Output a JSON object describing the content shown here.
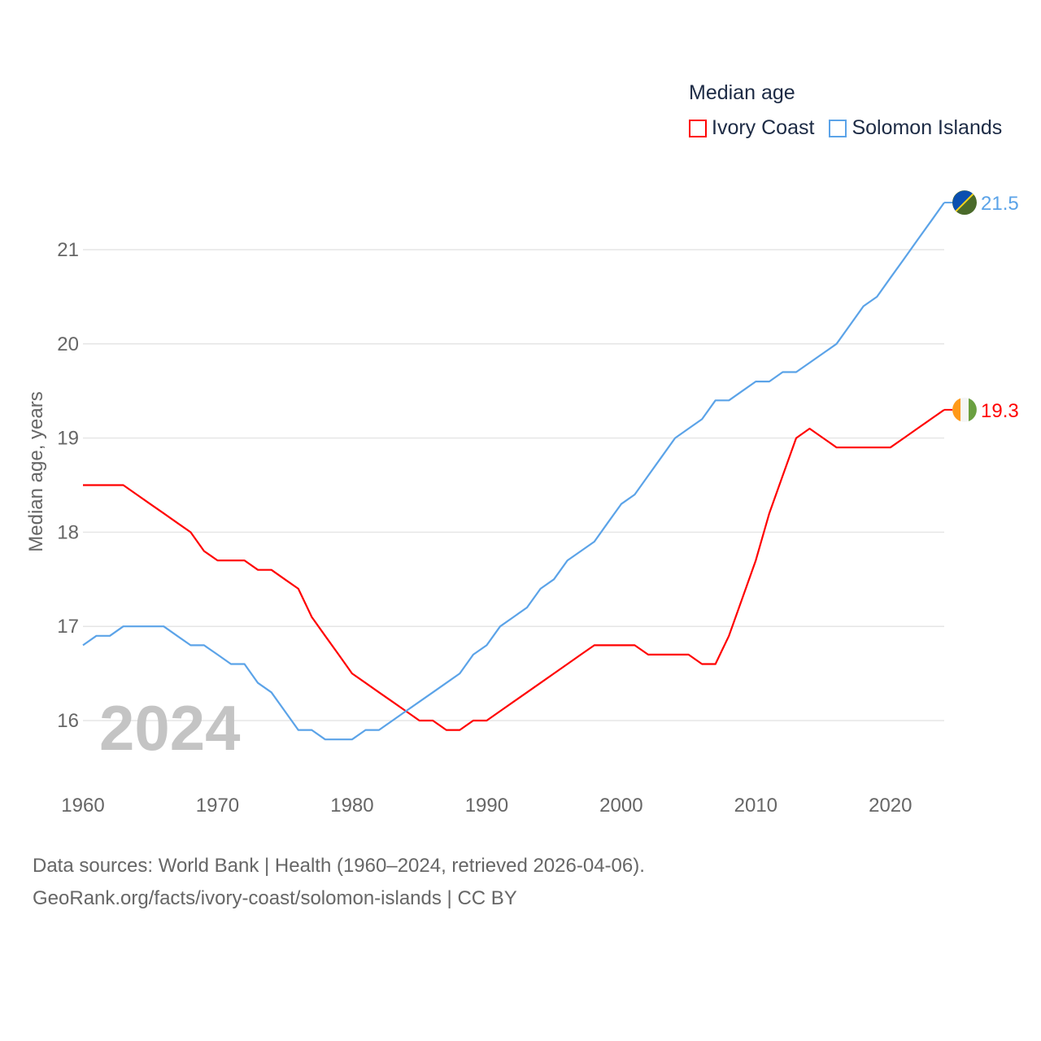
{
  "chart_data": {
    "type": "line",
    "title": "Median age",
    "ylabel": "Median age, years",
    "xlabel": "",
    "xlim": [
      1960,
      2024
    ],
    "ylim": [
      15.5,
      21.6
    ],
    "x_ticks": [
      1960,
      1970,
      1980,
      1990,
      2000,
      2010,
      2020
    ],
    "y_ticks": [
      16,
      17,
      18,
      19,
      20,
      21
    ],
    "grid": true,
    "legend_position": "top-right",
    "year_watermark": "2024",
    "x": [
      1960,
      1961,
      1962,
      1963,
      1964,
      1965,
      1966,
      1967,
      1968,
      1969,
      1970,
      1971,
      1972,
      1973,
      1974,
      1975,
      1976,
      1977,
      1978,
      1979,
      1980,
      1981,
      1982,
      1983,
      1984,
      1985,
      1986,
      1987,
      1988,
      1989,
      1990,
      1991,
      1992,
      1993,
      1994,
      1995,
      1996,
      1997,
      1998,
      1999,
      2000,
      2001,
      2002,
      2003,
      2004,
      2005,
      2006,
      2007,
      2008,
      2009,
      2010,
      2011,
      2012,
      2013,
      2014,
      2015,
      2016,
      2017,
      2018,
      2019,
      2020,
      2021,
      2022,
      2023,
      2024
    ],
    "series": [
      {
        "name": "Ivory Coast",
        "color": "#ff0000",
        "end_label": "19.3",
        "values": [
          18.5,
          18.5,
          18.5,
          18.5,
          18.4,
          18.3,
          18.2,
          18.1,
          18.0,
          17.8,
          17.7,
          17.7,
          17.7,
          17.6,
          17.6,
          17.5,
          17.4,
          17.1,
          16.9,
          16.7,
          16.5,
          16.4,
          16.3,
          16.2,
          16.1,
          16.0,
          16.0,
          15.9,
          15.9,
          16.0,
          16.0,
          16.1,
          16.2,
          16.3,
          16.4,
          16.5,
          16.6,
          16.7,
          16.8,
          16.8,
          16.8,
          16.8,
          16.7,
          16.7,
          16.7,
          16.7,
          16.6,
          16.6,
          16.9,
          17.3,
          17.7,
          18.2,
          18.6,
          19.0,
          19.1,
          19.0,
          18.9,
          18.9,
          18.9,
          18.9,
          18.9,
          19.0,
          19.1,
          19.2,
          19.3
        ]
      },
      {
        "name": "Solomon Islands",
        "color": "#5ba3e8",
        "end_label": "21.5",
        "values": [
          16.8,
          16.9,
          16.9,
          17.0,
          17.0,
          17.0,
          17.0,
          16.9,
          16.8,
          16.8,
          16.7,
          16.6,
          16.6,
          16.4,
          16.3,
          16.1,
          15.9,
          15.9,
          15.8,
          15.8,
          15.8,
          15.9,
          15.9,
          16.0,
          16.1,
          16.2,
          16.3,
          16.4,
          16.5,
          16.7,
          16.8,
          17.0,
          17.1,
          17.2,
          17.4,
          17.5,
          17.7,
          17.8,
          17.9,
          18.1,
          18.3,
          18.4,
          18.6,
          18.8,
          19.0,
          19.1,
          19.2,
          19.4,
          19.4,
          19.5,
          19.6,
          19.6,
          19.7,
          19.7,
          19.8,
          19.9,
          20.0,
          20.2,
          20.4,
          20.5,
          20.7,
          20.9,
          21.1,
          21.3,
          21.5
        ]
      }
    ]
  },
  "footer": {
    "line1": "Data sources: World Bank | Health (1960–2024, retrieved 2026-04-06).",
    "line2": "GeoRank.org/facts/ivory-coast/solomon-islands | CC BY"
  }
}
